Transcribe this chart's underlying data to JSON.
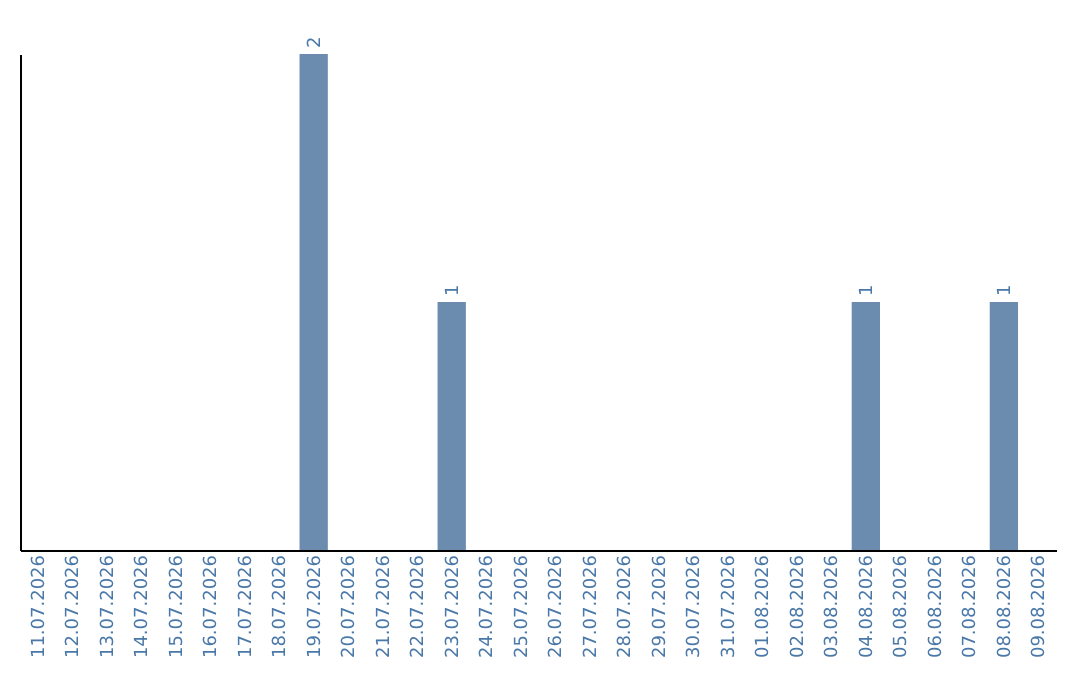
{
  "chart_data": {
    "type": "bar",
    "categories": [
      "11.07.2026",
      "12.07.2026",
      "13.07.2026",
      "14.07.2026",
      "15.07.2026",
      "16.07.2026",
      "17.07.2026",
      "18.07.2026",
      "19.07.2026",
      "20.07.2026",
      "21.07.2026",
      "22.07.2026",
      "23.07.2026",
      "24.07.2026",
      "25.07.2026",
      "26.07.2026",
      "27.07.2026",
      "28.07.2026",
      "29.07.2026",
      "30.07.2026",
      "31.07.2026",
      "01.08.2026",
      "02.08.2026",
      "03.08.2026",
      "04.08.2026",
      "05.08.2026",
      "06.08.2026",
      "07.08.2026",
      "08.08.2026",
      "09.08.2026"
    ],
    "values": [
      0,
      0,
      0,
      0,
      0,
      0,
      0,
      0,
      2,
      0,
      0,
      0,
      1,
      0,
      0,
      0,
      0,
      0,
      0,
      0,
      0,
      0,
      0,
      0,
      1,
      0,
      0,
      0,
      1,
      0
    ],
    "value_labels": [
      null,
      null,
      null,
      null,
      null,
      null,
      null,
      null,
      "2",
      null,
      null,
      null,
      "1",
      null,
      null,
      null,
      null,
      null,
      null,
      null,
      null,
      null,
      null,
      null,
      "1",
      null,
      null,
      null,
      "1",
      null
    ],
    "color": "#6b8cae",
    "tick_labels": "x"
  }
}
